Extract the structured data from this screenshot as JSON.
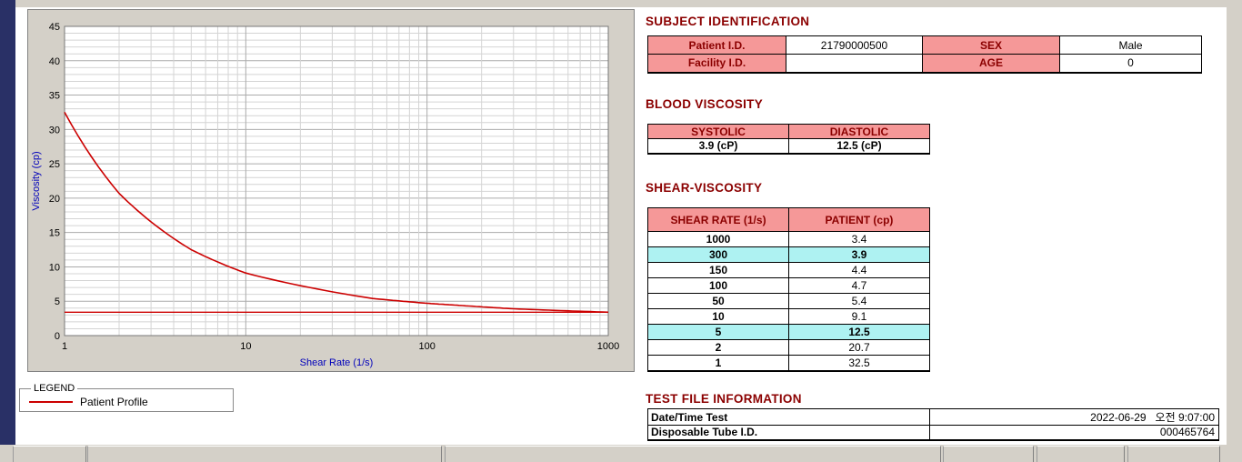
{
  "colors": {
    "heading": "#8b0000",
    "table_header_bg": "#f59898",
    "highlight_bg": "#aef2f2",
    "curve": "#cc0000",
    "axis_label": "#0000bb",
    "window_chrome": "#d4d0c8",
    "left_strip": "#293066"
  },
  "legend": {
    "title": "LEGEND",
    "series_label": "Patient Profile"
  },
  "subject": {
    "heading": "SUBJECT IDENTIFICATION",
    "rows": [
      {
        "label": "Patient I.D.",
        "value": "21790000500",
        "label2": "SEX",
        "value2": "Male"
      },
      {
        "label": "Facility I.D.",
        "value": "",
        "label2": "AGE",
        "value2": "0"
      }
    ]
  },
  "blood_viscosity": {
    "heading": "BLOOD VISCOSITY",
    "columns": [
      "SYSTOLIC",
      "DIASTOLIC"
    ],
    "values": [
      "3.9 (cP)",
      "12.5 (cP)"
    ]
  },
  "shear_viscosity": {
    "heading": "SHEAR-VISCOSITY",
    "columns": [
      "SHEAR RATE (1/s)",
      "PATIENT (cp)"
    ],
    "rows": [
      {
        "rate": "1000",
        "value": "3.4",
        "highlight": false
      },
      {
        "rate": "300",
        "value": "3.9",
        "highlight": true
      },
      {
        "rate": "150",
        "value": "4.4",
        "highlight": false
      },
      {
        "rate": "100",
        "value": "4.7",
        "highlight": false
      },
      {
        "rate": "50",
        "value": "5.4",
        "highlight": false
      },
      {
        "rate": "10",
        "value": "9.1",
        "highlight": false
      },
      {
        "rate": "5",
        "value": "12.5",
        "highlight": true
      },
      {
        "rate": "2",
        "value": "20.7",
        "highlight": false
      },
      {
        "rate": "1",
        "value": "32.5",
        "highlight": false
      }
    ]
  },
  "test_file": {
    "heading": "TEST FILE INFORMATION",
    "rows": [
      {
        "label": "Date/Time Test",
        "value": "2022-06-29   오전 9:07:00"
      },
      {
        "label": "Disposable Tube I.D.",
        "value": "000465764"
      }
    ]
  },
  "chart_data": {
    "type": "line",
    "title": "",
    "xlabel": "Shear Rate (1/s)",
    "ylabel": "Viscosity (cp)",
    "x_scale": "log",
    "xlim": [
      1,
      1000
    ],
    "ylim": [
      0,
      45
    ],
    "x_ticks": [
      1,
      10,
      100,
      1000
    ],
    "y_ticks": [
      0,
      5,
      10,
      15,
      20,
      25,
      30,
      35,
      40,
      45
    ],
    "grid": true,
    "legend_position": "below-left",
    "series": [
      {
        "name": "Patient Profile",
        "color": "#cc0000",
        "x": [
          1,
          2,
          5,
          10,
          50,
          100,
          150,
          300,
          1000
        ],
        "y": [
          32.5,
          20.7,
          12.5,
          9.1,
          5.4,
          4.7,
          4.4,
          3.9,
          3.4
        ]
      }
    ],
    "reference_line": {
      "y": 3.4,
      "color": "#cc0000"
    }
  }
}
